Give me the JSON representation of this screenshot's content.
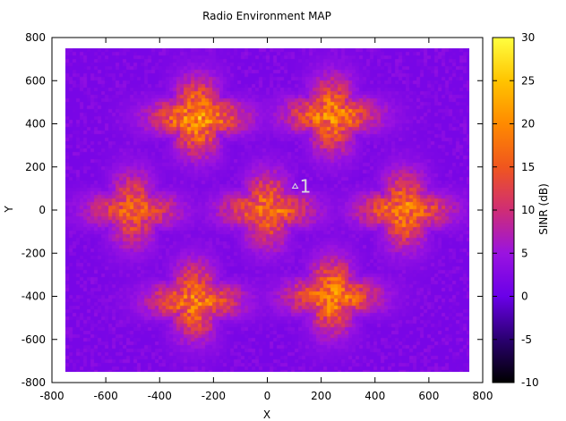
{
  "chart_data": {
    "type": "heatmap",
    "title": "Radio Environment MAP",
    "xlabel": "X",
    "ylabel": "Y",
    "xlim": [
      -800,
      800
    ],
    "ylim": [
      -800,
      800
    ],
    "data_extent": {
      "x": [
        -750,
        750
      ],
      "y": [
        -750,
        750
      ]
    },
    "xticks": [
      -800,
      -600,
      -400,
      -200,
      0,
      200,
      400,
      600,
      800
    ],
    "yticks": [
      -800,
      -600,
      -400,
      -200,
      0,
      200,
      400,
      600,
      800
    ],
    "colorbar": {
      "label": "SINR (dB)",
      "range": [
        -10,
        30
      ],
      "ticks": [
        -10,
        -5,
        0,
        5,
        10,
        15,
        20,
        25,
        30
      ],
      "colormap": [
        "#000000",
        "#2a0070",
        "#6a00e8",
        "#9a13e0",
        "#cf2d75",
        "#f0561e",
        "#ff8a00",
        "#ffc400",
        "#ffff40"
      ]
    },
    "background_sinr_db": 1.5,
    "hotspots": [
      {
        "x": -260,
        "y": 430,
        "peak_sinr_db": 24
      },
      {
        "x": 240,
        "y": 440,
        "peak_sinr_db": 22
      },
      {
        "x": -500,
        "y": 0,
        "peak_sinr_db": 18
      },
      {
        "x": 0,
        "y": 0,
        "peak_sinr_db": 20
      },
      {
        "x": 510,
        "y": 0,
        "peak_sinr_db": 21
      },
      {
        "x": -270,
        "y": -420,
        "peak_sinr_db": 21
      },
      {
        "x": 240,
        "y": -400,
        "peak_sinr_db": 22
      }
    ],
    "annotations": [
      {
        "text": "1",
        "x": 120,
        "y": 110
      }
    ],
    "grid": false,
    "legend": "none"
  }
}
